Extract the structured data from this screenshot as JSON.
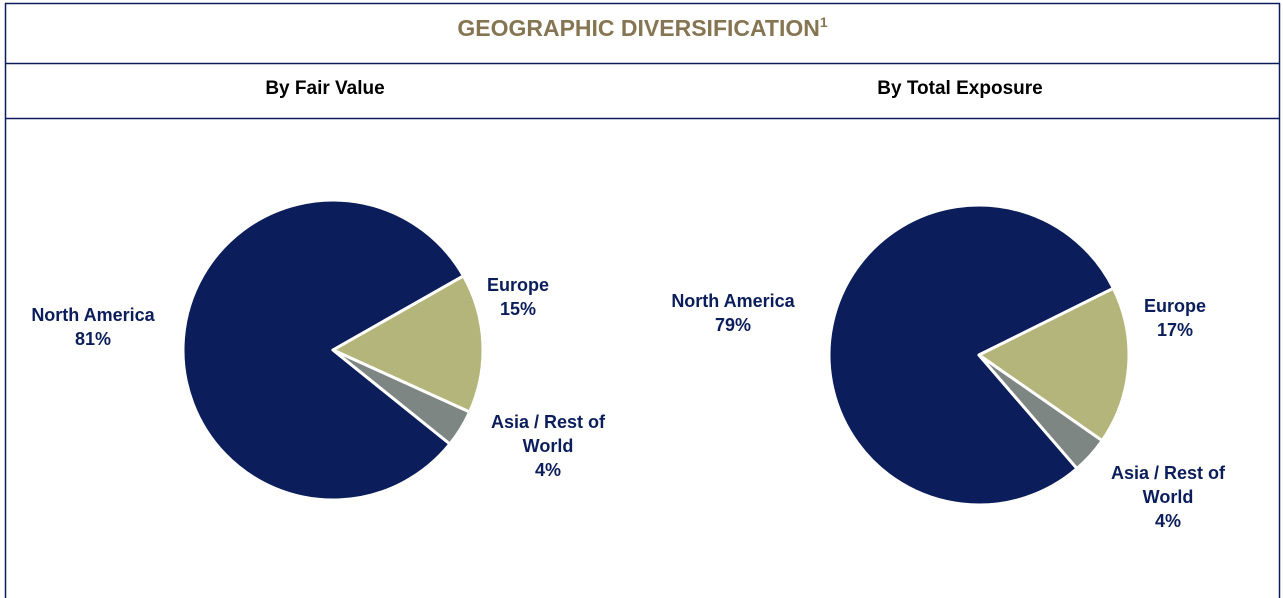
{
  "title": "GEOGRAPHIC DIVERSIFICATION",
  "footnote_mark": "1",
  "chart_data": [
    {
      "type": "pie",
      "title": "By Fair Value",
      "categories": [
        "North America",
        "Europe",
        "Asia / Rest of World"
      ],
      "values": [
        81,
        15,
        4
      ],
      "value_labels": [
        "81%",
        "15%",
        "4%"
      ],
      "colors": [
        "#0b1e5b",
        "#b4b57a",
        "#7e8684"
      ]
    },
    {
      "type": "pie",
      "title": "By Total Exposure",
      "categories": [
        "North America",
        "Europe",
        "Asia / Rest of World"
      ],
      "values": [
        79,
        17,
        4
      ],
      "value_labels": [
        "79%",
        "17%",
        "4%"
      ],
      "colors": [
        "#0b1e5b",
        "#b4b57a",
        "#7e8684"
      ]
    }
  ]
}
